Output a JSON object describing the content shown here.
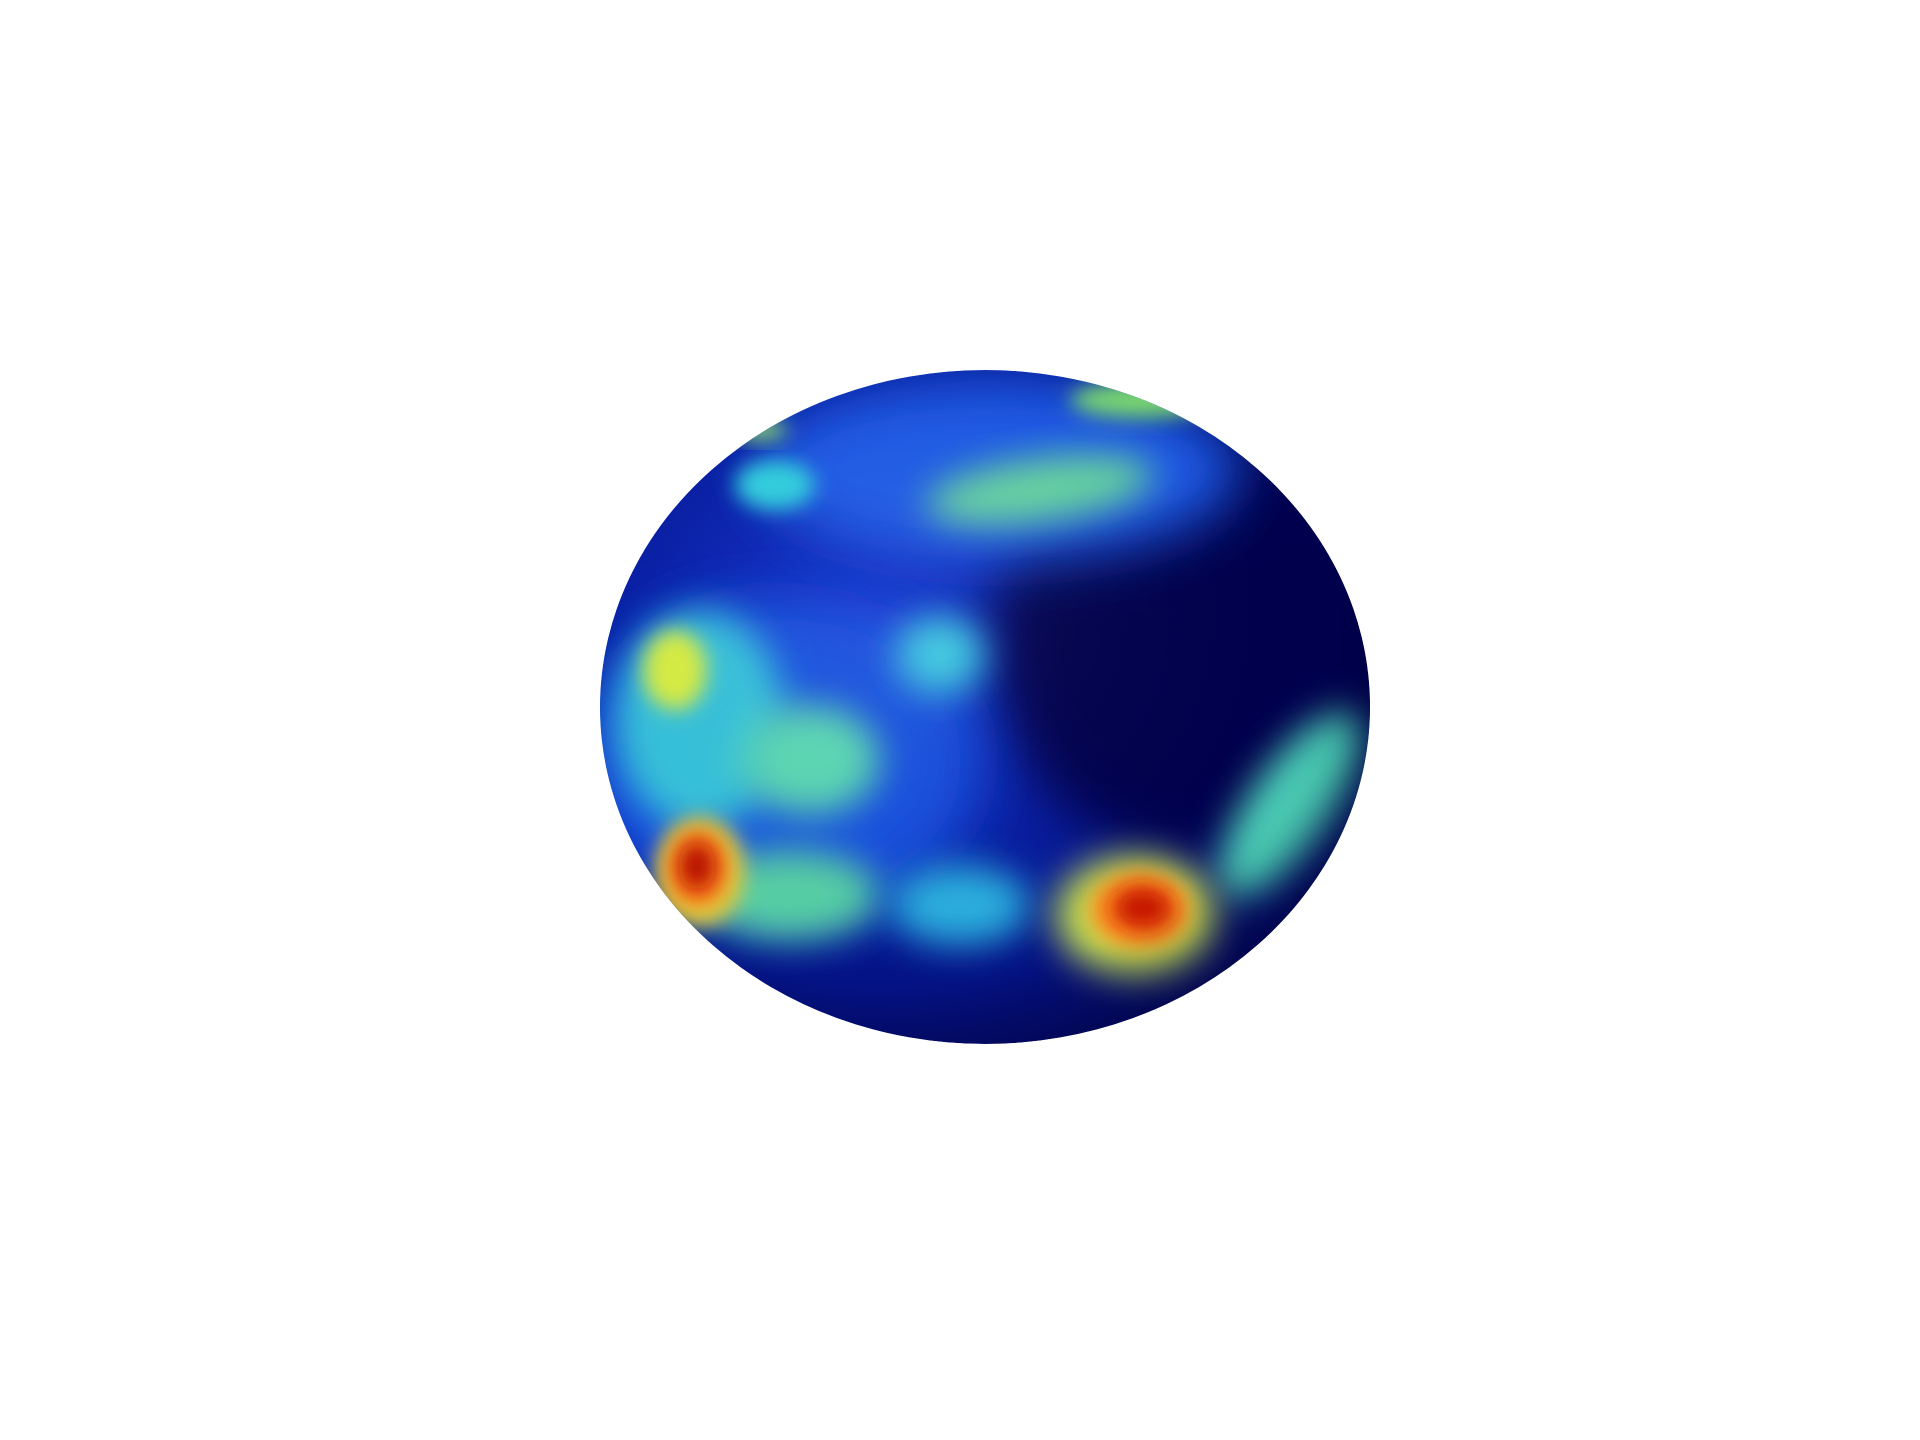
{
  "figure": {
    "type": "sphere-heatmap",
    "colormap": "jet",
    "colors": {
      "background": "#ffffff",
      "base_dark": "#00004e",
      "base_blue": "#0a1fb8",
      "cyan": "#1ec8e6",
      "green": "#6fdc8c",
      "yellow": "#e6f03c",
      "orange": "#ff8c1a",
      "red": "#c81400"
    },
    "hotspots": [
      {
        "label": "red-spot-left",
        "level": 0.95
      },
      {
        "label": "red-spot-right",
        "level": 0.92
      },
      {
        "label": "yellow-left",
        "level": 0.7
      },
      {
        "label": "green-top-band",
        "level": 0.5
      },
      {
        "label": "cyan-center",
        "level": 0.45
      },
      {
        "label": "green-right-arc",
        "level": 0.55
      }
    ]
  }
}
